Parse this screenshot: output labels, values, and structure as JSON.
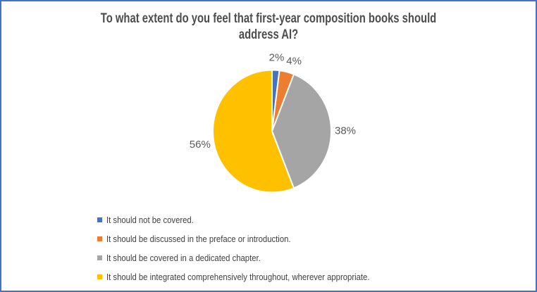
{
  "frame": {
    "background": "#FFFFFF",
    "border_color": "#4472C4"
  },
  "header": {
    "title_line1": "To what extent do you feel that first-year composition books should",
    "title_line2": "address AI?"
  },
  "chart_data": {
    "type": "pie",
    "title": "To what extent do you feel that first-year composition books should address AI?",
    "legend_position": "bottom-left",
    "data_labels": "outside-end-percent",
    "slices": [
      {
        "label": "It should not be covered.",
        "value": 2,
        "percent_label": "2%",
        "color": "#4472C4"
      },
      {
        "label": "It should be discussed in the preface or introduction.",
        "value": 4,
        "percent_label": "4%",
        "color": "#ED7D31"
      },
      {
        "label": "It should be covered in a dedicated chapter.",
        "value": 38,
        "percent_label": "38%",
        "color": "#A5A5A5"
      },
      {
        "label": "It should be integrated comprehensively throughout, wherever appropriate.",
        "value": 56,
        "percent_label": "56%",
        "color": "#FFC000"
      }
    ]
  }
}
